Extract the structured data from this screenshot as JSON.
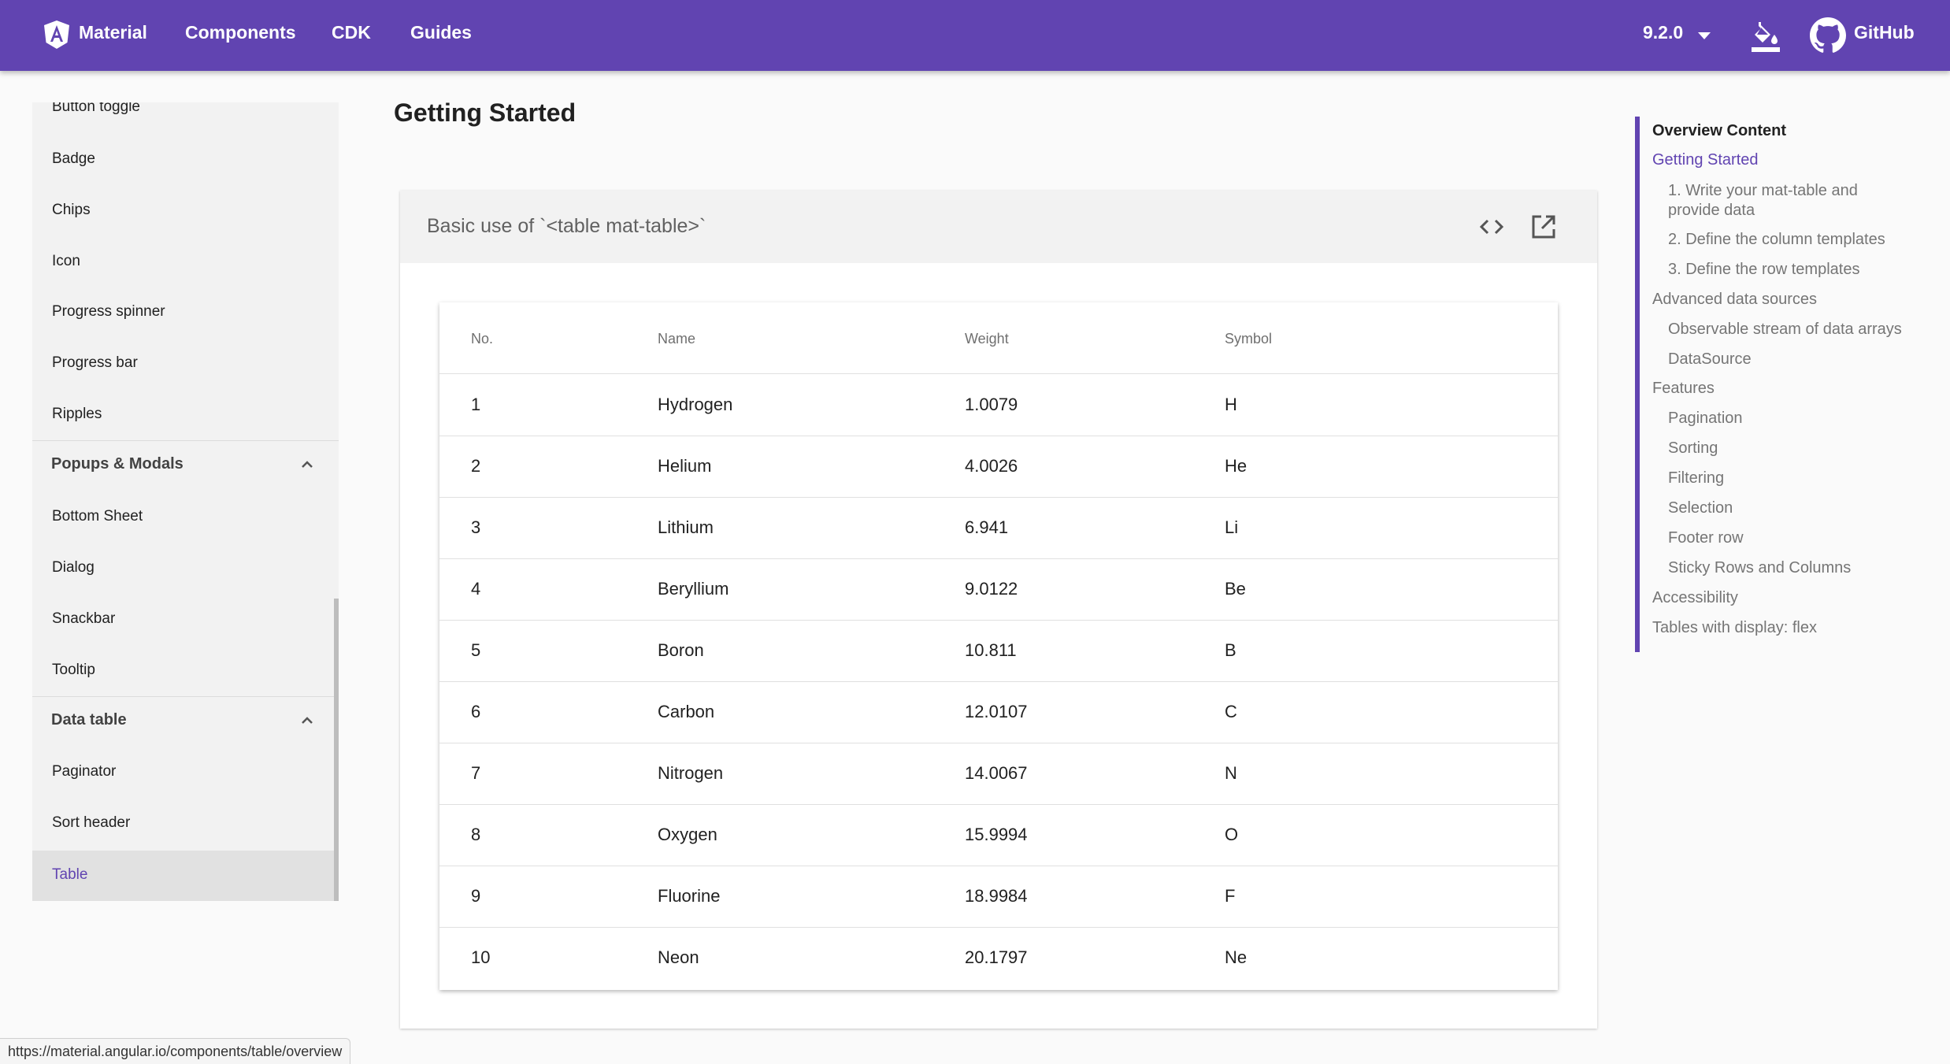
{
  "toolbar": {
    "brand": "Material",
    "nav": [
      "Components",
      "CDK",
      "Guides"
    ],
    "version": "9.2.0",
    "github": "GitHub",
    "icons": {
      "logo": "angular-logo-icon",
      "theme": "format-color-fill-icon",
      "github": "github-icon",
      "version_caret": "arrow-drop-down-icon"
    },
    "background": "#6144b1"
  },
  "sidebar": {
    "items_top": [
      "Button toggle",
      "Badge",
      "Chips",
      "Icon",
      "Progress spinner",
      "Progress bar",
      "Ripples"
    ],
    "groups": [
      {
        "label": "Popups & Modals",
        "expanded": true,
        "items": [
          "Bottom Sheet",
          "Dialog",
          "Snackbar",
          "Tooltip"
        ]
      },
      {
        "label": "Data table",
        "expanded": true,
        "items": [
          "Paginator",
          "Sort header",
          "Table"
        ]
      }
    ],
    "active_item": "Table"
  },
  "main": {
    "title": "Getting Started",
    "example": {
      "title": "Basic use of `<table mat-table>`",
      "icons": [
        "code-icon",
        "open-in-new-icon"
      ],
      "table": {
        "columns": [
          "No.",
          "Name",
          "Weight",
          "Symbol"
        ],
        "rows": [
          [
            "1",
            "Hydrogen",
            "1.0079",
            "H"
          ],
          [
            "2",
            "Helium",
            "4.0026",
            "He"
          ],
          [
            "3",
            "Lithium",
            "6.941",
            "Li"
          ],
          [
            "4",
            "Beryllium",
            "9.0122",
            "Be"
          ],
          [
            "5",
            "Boron",
            "10.811",
            "B"
          ],
          [
            "6",
            "Carbon",
            "12.0107",
            "C"
          ],
          [
            "7",
            "Nitrogen",
            "14.0067",
            "N"
          ],
          [
            "8",
            "Oxygen",
            "15.9994",
            "O"
          ],
          [
            "9",
            "Fluorine",
            "18.9984",
            "F"
          ],
          [
            "10",
            "Neon",
            "20.1797",
            "Ne"
          ]
        ]
      }
    }
  },
  "toc": {
    "heading": "Overview Content",
    "items": [
      {
        "label": "Getting Started",
        "level": 1,
        "active": true
      },
      {
        "label": "1. Write your mat-table and provide data",
        "level": 2
      },
      {
        "label": "2. Define the column templates",
        "level": 2
      },
      {
        "label": "3. Define the row templates",
        "level": 2
      },
      {
        "label": "Advanced data sources",
        "level": 1
      },
      {
        "label": "Observable stream of data arrays",
        "level": 2
      },
      {
        "label": "DataSource",
        "level": 2
      },
      {
        "label": "Features",
        "level": 1
      },
      {
        "label": "Pagination",
        "level": 2
      },
      {
        "label": "Sorting",
        "level": 2
      },
      {
        "label": "Filtering",
        "level": 2
      },
      {
        "label": "Selection",
        "level": 2
      },
      {
        "label": "Footer row",
        "level": 2
      },
      {
        "label": "Sticky Rows and Columns",
        "level": 2
      },
      {
        "label": "Accessibility",
        "level": 1
      },
      {
        "label": "Tables with display: flex",
        "level": 1
      }
    ]
  },
  "status_url": "https://material.angular.io/components/table/overview",
  "colors": {
    "primary": "#6144b1",
    "sidebar_bg": "#f2f2f2",
    "active_bg": "#e1e1e1"
  }
}
